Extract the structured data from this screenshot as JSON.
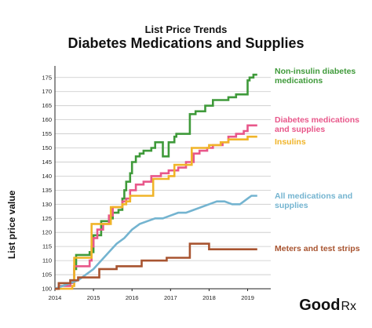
{
  "header": {
    "title": "List Price Trends",
    "subtitle": "Diabetes Medications and Supplies"
  },
  "brand": {
    "name": "Good",
    "mark": "Rx"
  },
  "chart_data": {
    "type": "line",
    "title": "List Price Trends",
    "subtitle": "Diabetes Medications and Supplies",
    "xlabel": "",
    "ylabel": "List price value",
    "xlim": [
      2014,
      2019.6
    ],
    "ylim": [
      100,
      178
    ],
    "x_ticks": [
      "2014",
      "2015",
      "2016",
      "2017",
      "2018",
      "2019"
    ],
    "y_ticks": [
      100,
      105,
      110,
      115,
      120,
      125,
      130,
      135,
      140,
      145,
      150,
      155,
      160,
      165,
      170,
      175
    ],
    "grid": "horizontal",
    "legend": "direct labels, right",
    "series": [
      {
        "name": "Non-insulin diabetes medications",
        "color": "#3f9a3a",
        "step": true,
        "points": [
          [
            2014.0,
            100
          ],
          [
            2014.1,
            102
          ],
          [
            2014.4,
            103
          ],
          [
            2014.5,
            107
          ],
          [
            2014.55,
            112
          ],
          [
            2014.9,
            113
          ],
          [
            2015.0,
            119
          ],
          [
            2015.2,
            124
          ],
          [
            2015.4,
            125
          ],
          [
            2015.5,
            127
          ],
          [
            2015.65,
            128
          ],
          [
            2015.75,
            132
          ],
          [
            2015.8,
            135
          ],
          [
            2015.85,
            138
          ],
          [
            2015.95,
            141
          ],
          [
            2016.0,
            145
          ],
          [
            2016.1,
            147
          ],
          [
            2016.2,
            148
          ],
          [
            2016.3,
            149
          ],
          [
            2016.5,
            150
          ],
          [
            2016.6,
            152
          ],
          [
            2016.8,
            147
          ],
          [
            2016.95,
            152
          ],
          [
            2017.1,
            154
          ],
          [
            2017.15,
            155
          ],
          [
            2017.3,
            155
          ],
          [
            2017.5,
            162
          ],
          [
            2017.65,
            163
          ],
          [
            2017.7,
            163
          ],
          [
            2017.9,
            165
          ],
          [
            2018.0,
            165
          ],
          [
            2018.1,
            167
          ],
          [
            2018.4,
            167
          ],
          [
            2018.5,
            168
          ],
          [
            2018.7,
            169
          ],
          [
            2019.0,
            174
          ],
          [
            2019.05,
            175
          ],
          [
            2019.15,
            176
          ],
          [
            2019.25,
            176
          ]
        ]
      },
      {
        "name": "Diabetes medications and supplies",
        "color": "#e8578a",
        "step": true,
        "points": [
          [
            2014.0,
            100
          ],
          [
            2014.1,
            101
          ],
          [
            2014.4,
            102
          ],
          [
            2014.5,
            108
          ],
          [
            2014.9,
            110
          ],
          [
            2014.95,
            115
          ],
          [
            2015.0,
            118
          ],
          [
            2015.1,
            121
          ],
          [
            2015.25,
            123
          ],
          [
            2015.4,
            126
          ],
          [
            2015.5,
            129
          ],
          [
            2015.75,
            131
          ],
          [
            2015.85,
            132
          ],
          [
            2015.95,
            135
          ],
          [
            2016.1,
            137
          ],
          [
            2016.3,
            138
          ],
          [
            2016.5,
            140
          ],
          [
            2016.75,
            141
          ],
          [
            2016.95,
            142
          ],
          [
            2017.2,
            143
          ],
          [
            2017.4,
            145
          ],
          [
            2017.6,
            148
          ],
          [
            2017.75,
            149
          ],
          [
            2017.95,
            150
          ],
          [
            2018.1,
            151
          ],
          [
            2018.35,
            152
          ],
          [
            2018.5,
            154
          ],
          [
            2018.7,
            155
          ],
          [
            2018.9,
            156
          ],
          [
            2019.0,
            158
          ],
          [
            2019.1,
            158
          ],
          [
            2019.25,
            158
          ]
        ]
      },
      {
        "name": "Insulins",
        "color": "#f0b429",
        "step": true,
        "points": [
          [
            2014.0,
            100
          ],
          [
            2014.45,
            101
          ],
          [
            2014.5,
            111
          ],
          [
            2014.8,
            111
          ],
          [
            2014.95,
            123
          ],
          [
            2015.4,
            123
          ],
          [
            2015.45,
            129
          ],
          [
            2015.75,
            130
          ],
          [
            2015.85,
            131
          ],
          [
            2015.95,
            133
          ],
          [
            2016.5,
            133
          ],
          [
            2016.55,
            139
          ],
          [
            2016.75,
            139
          ],
          [
            2016.95,
            140
          ],
          [
            2017.1,
            144
          ],
          [
            2017.5,
            144
          ],
          [
            2017.55,
            150
          ],
          [
            2017.85,
            150
          ],
          [
            2018.0,
            151
          ],
          [
            2018.3,
            152
          ],
          [
            2018.5,
            153
          ],
          [
            2018.75,
            153
          ],
          [
            2019.0,
            154
          ],
          [
            2019.25,
            154
          ]
        ]
      },
      {
        "name": "All medications and supplies",
        "color": "#74b4d0",
        "step": false,
        "points": [
          [
            2014.0,
            100
          ],
          [
            2014.2,
            101
          ],
          [
            2014.4,
            102
          ],
          [
            2014.6,
            103
          ],
          [
            2014.8,
            105
          ],
          [
            2015.0,
            107
          ],
          [
            2015.2,
            110
          ],
          [
            2015.4,
            113
          ],
          [
            2015.6,
            116
          ],
          [
            2015.8,
            118
          ],
          [
            2016.0,
            121
          ],
          [
            2016.2,
            123
          ],
          [
            2016.4,
            124
          ],
          [
            2016.6,
            125
          ],
          [
            2016.8,
            125
          ],
          [
            2017.0,
            126
          ],
          [
            2017.2,
            127
          ],
          [
            2017.4,
            127
          ],
          [
            2017.6,
            128
          ],
          [
            2017.8,
            129
          ],
          [
            2018.0,
            130
          ],
          [
            2018.2,
            131
          ],
          [
            2018.4,
            131
          ],
          [
            2018.6,
            130
          ],
          [
            2018.8,
            130
          ],
          [
            2019.0,
            132
          ],
          [
            2019.1,
            133
          ],
          [
            2019.25,
            133
          ]
        ]
      },
      {
        "name": "Meters and test strips",
        "color": "#a85430",
        "step": true,
        "points": [
          [
            2014.0,
            100
          ],
          [
            2014.1,
            102
          ],
          [
            2014.4,
            103
          ],
          [
            2014.6,
            104
          ],
          [
            2015.1,
            104
          ],
          [
            2015.15,
            107
          ],
          [
            2015.5,
            107
          ],
          [
            2015.6,
            108
          ],
          [
            2016.2,
            108
          ],
          [
            2016.25,
            110
          ],
          [
            2016.8,
            110
          ],
          [
            2016.9,
            111
          ],
          [
            2017.4,
            111
          ],
          [
            2017.5,
            116
          ],
          [
            2017.95,
            116
          ],
          [
            2018.0,
            114
          ],
          [
            2018.5,
            114
          ],
          [
            2018.6,
            114
          ],
          [
            2018.9,
            114
          ],
          [
            2019.0,
            114
          ],
          [
            2019.25,
            114
          ]
        ]
      }
    ]
  }
}
